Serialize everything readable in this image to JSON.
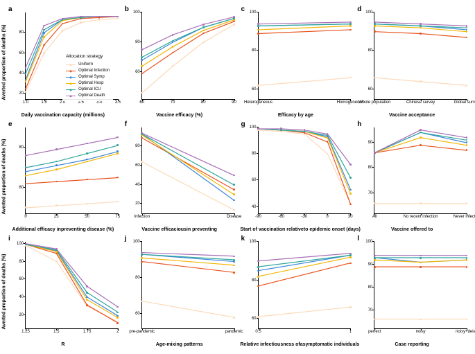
{
  "y_axis_label": "Averted proportion of deaths (%)",
  "series_colors": {
    "uniform": "#fcd9b8",
    "infection": "#e8531f",
    "symp": "#3a86d6",
    "hosp": "#f2b705",
    "icu": "#2ba59a",
    "death": "#a86fb8"
  },
  "legend": {
    "title": "Allocation strategy",
    "items": [
      {
        "key": "uniform",
        "label": "Uniform"
      },
      {
        "key": "infection",
        "label": "Optimal Infection"
      },
      {
        "key": "symp",
        "label": "Optimal Symp"
      },
      {
        "key": "hosp",
        "label": "Optimal Hosp"
      },
      {
        "key": "icu",
        "label": "Optimal ICU"
      },
      {
        "key": "death",
        "label": "Optimal Death"
      }
    ]
  },
  "style": {
    "line_width": 1.2,
    "marker_radius": 1.3,
    "panel_label_fontsize": 10,
    "tick_fontsize": 6,
    "axis_fontsize": 7,
    "background": "#ffffff"
  },
  "panels": [
    {
      "id": "a",
      "xlabel": "Daily vaccination capacity (millions)",
      "yticks": [
        20,
        40,
        60,
        80
      ],
      "ylim": [
        15,
        100
      ],
      "xtick_labels": [
        "1.0",
        "1.5",
        "2.0",
        "2.5",
        "3.0",
        "3.5"
      ],
      "x": [
        1.0,
        1.5,
        2.0,
        2.5,
        3.0,
        3.5
      ],
      "series": {
        "uniform": [
          22,
          60,
          82,
          90,
          93,
          94
        ],
        "infection": [
          25,
          68,
          89,
          94,
          95,
          96
        ],
        "symp": [
          34,
          80,
          93,
          95,
          96,
          96
        ],
        "hosp": [
          32,
          76,
          92,
          95,
          96,
          96
        ],
        "icu": [
          40,
          83,
          93,
          95,
          96,
          96
        ],
        "death": [
          46,
          87,
          94,
          96,
          96,
          96
        ]
      },
      "show_legend": true
    },
    {
      "id": "b",
      "xlabel": "Vaccine efficacy (%)",
      "yticks": [
        60,
        80,
        100
      ],
      "ylim": [
        42,
        100
      ],
      "xtick_labels": [
        "60",
        "70",
        "80",
        "90"
      ],
      "x": [
        60,
        70,
        80,
        90
      ],
      "series": {
        "uniform": [
          46,
          64,
          80,
          92
        ],
        "infection": [
          59,
          73,
          86,
          94
        ],
        "symp": [
          68,
          80,
          90,
          96
        ],
        "hosp": [
          64,
          77,
          88,
          95
        ],
        "icu": [
          70,
          81,
          90,
          96
        ],
        "death": [
          75,
          85,
          92,
          97
        ]
      }
    },
    {
      "id": "c",
      "xlabel": "Efficacy by age",
      "yticks": [
        60,
        80,
        100
      ],
      "ylim": [
        55,
        100
      ],
      "xtick_labels": [
        "Heterogeneous",
        "Homogeneous"
      ],
      "x": [
        0,
        1
      ],
      "series": {
        "uniform": [
          62,
          66
        ],
        "infection": [
          89,
          91
        ],
        "symp": [
          93,
          94
        ],
        "hosp": [
          91,
          93
        ],
        "icu": [
          93,
          94
        ],
        "death": [
          94,
          95
        ]
      }
    },
    {
      "id": "d",
      "xlabel": "Vaccine acceptance",
      "yticks": [
        60,
        80,
        100
      ],
      "ylim": [
        55,
        100
      ],
      "xtick_labels": [
        "Whole population",
        "Chinese survey",
        "Global survey"
      ],
      "x": [
        0,
        1,
        2
      ],
      "series": {
        "uniform": [
          66,
          64,
          62
        ],
        "infection": [
          90,
          89,
          87
        ],
        "symp": [
          94,
          93,
          91
        ],
        "hosp": [
          93,
          92,
          90
        ],
        "icu": [
          94,
          93,
          92
        ],
        "death": [
          95,
          94,
          93
        ]
      }
    },
    {
      "id": "e",
      "xlabel": "Additional efficacy in\npreventing disease (%)",
      "yticks": [
        60,
        80
      ],
      "ylim": [
        47,
        90
      ],
      "xtick_labels": [
        "0",
        "25",
        "50",
        "75"
      ],
      "x": [
        0,
        25,
        50,
        75
      ],
      "series": {
        "uniform": [
          50,
          51,
          52,
          53
        ],
        "infection": [
          62,
          63,
          64,
          65
        ],
        "symp": [
          68,
          71,
          74,
          78
        ],
        "hosp": [
          66,
          69,
          73,
          77
        ],
        "icu": [
          70,
          73,
          77,
          81
        ],
        "death": [
          76,
          79,
          82,
          85
        ]
      }
    },
    {
      "id": "f",
      "xlabel": "Vaccine efficacious\nin preventing",
      "yticks": [
        20,
        40,
        60,
        80
      ],
      "ylim": [
        10,
        100
      ],
      "xtick_labels": [
        "Infection",
        "Disease"
      ],
      "x": [
        0,
        1
      ],
      "series": {
        "uniform": [
          64,
          14
        ],
        "infection": [
          89,
          35
        ],
        "symp": [
          93,
          24
        ],
        "hosp": [
          92,
          30
        ],
        "icu": [
          93,
          40
        ],
        "death": [
          94,
          50
        ]
      }
    },
    {
      "id": "g",
      "xlabel": "Start of vaccination relative\nto epidemic onset (days)",
      "yticks": [
        40,
        60,
        80,
        100
      ],
      "ylim": [
        35,
        100
      ],
      "xtick_labels": [
        "-90",
        "-60",
        "-30",
        "0",
        "30"
      ],
      "x": [
        -90,
        -60,
        -30,
        0,
        30
      ],
      "series": {
        "uniform": [
          98,
          97,
          95,
          80,
          42
        ],
        "infection": [
          99,
          98,
          96,
          89,
          42
        ],
        "symp": [
          99,
          98,
          97,
          93,
          53
        ],
        "hosp": [
          99,
          98,
          97,
          92,
          50
        ],
        "icu": [
          99,
          98,
          97,
          94,
          62
        ],
        "death": [
          99,
          99,
          98,
          95,
          72
        ]
      }
    },
    {
      "id": "h",
      "xlabel": "Vaccine offered to",
      "yticks": [
        70,
        80,
        90
      ],
      "ylim": [
        62,
        96
      ],
      "xtick_labels": [
        "All",
        "No recent infection",
        "Never infected"
      ],
      "x": [
        0,
        1,
        2
      ],
      "series": {
        "uniform": [
          66,
          66,
          66
        ],
        "infection": [
          86,
          89,
          87
        ],
        "symp": [
          86,
          94,
          90
        ],
        "hosp": [
          86,
          92,
          89
        ],
        "icu": [
          86,
          94,
          91
        ],
        "death": [
          86,
          95,
          92
        ]
      }
    },
    {
      "id": "i",
      "xlabel": "R",
      "yticks": [
        20,
        40,
        60,
        80,
        100
      ],
      "ylim": [
        5,
        102
      ],
      "xtick_labels": [
        "1.25",
        "1.5",
        "1.75",
        "2"
      ],
      "x": [
        1.25,
        1.5,
        1.75,
        2.0
      ],
      "series": {
        "uniform": [
          98,
          80,
          30,
          12
        ],
        "infection": [
          99,
          89,
          31,
          11
        ],
        "symp": [
          99,
          92,
          40,
          19
        ],
        "hosp": [
          99,
          91,
          37,
          17
        ],
        "icu": [
          99,
          93,
          45,
          23
        ],
        "death": [
          100,
          94,
          52,
          29
        ]
      }
    },
    {
      "id": "j",
      "xlabel": "Age-mixing patterns",
      "yticks": [
        60,
        80,
        100
      ],
      "ylim": [
        52,
        100
      ],
      "xtick_labels": [
        "pre-pandemic",
        "pandemic"
      ],
      "x": [
        0,
        1
      ],
      "series": {
        "uniform": [
          67,
          58
        ],
        "infection": [
          89,
          83
        ],
        "symp": [
          93,
          89
        ],
        "hosp": [
          91,
          87
        ],
        "icu": [
          93,
          90
        ],
        "death": [
          94,
          92
        ]
      }
    },
    {
      "id": "k",
      "xlabel": "Relative infectiousness of\nasymptomatic individuals",
      "yticks": [
        60,
        80,
        100
      ],
      "ylim": [
        55,
        100
      ],
      "xtick_labels": [
        "1",
        "0.5"
      ],
      "x": [
        1,
        0.5
      ],
      "series": {
        "uniform": [
          66,
          61
        ],
        "infection": [
          89,
          77
        ],
        "symp": [
          93,
          85
        ],
        "hosp": [
          92,
          82
        ],
        "icu": [
          93,
          87
        ],
        "death": [
          94,
          90
        ]
      }
    },
    {
      "id": "l",
      "xlabel": "Case reporting",
      "yticks": [
        70,
        80,
        90,
        100
      ],
      "ylim": [
        62,
        100
      ],
      "xtick_labels": [
        "perfect",
        "noisy",
        "noisy+delay"
      ],
      "x": [
        0,
        1,
        2
      ],
      "series": {
        "uniform": [
          66,
          66,
          66
        ],
        "infection": [
          89,
          89,
          89
        ],
        "symp": [
          93,
          91,
          92
        ],
        "hosp": [
          92,
          91,
          92
        ],
        "icu": [
          93,
          93,
          93
        ],
        "death": [
          94,
          94,
          94
        ]
      }
    }
  ]
}
